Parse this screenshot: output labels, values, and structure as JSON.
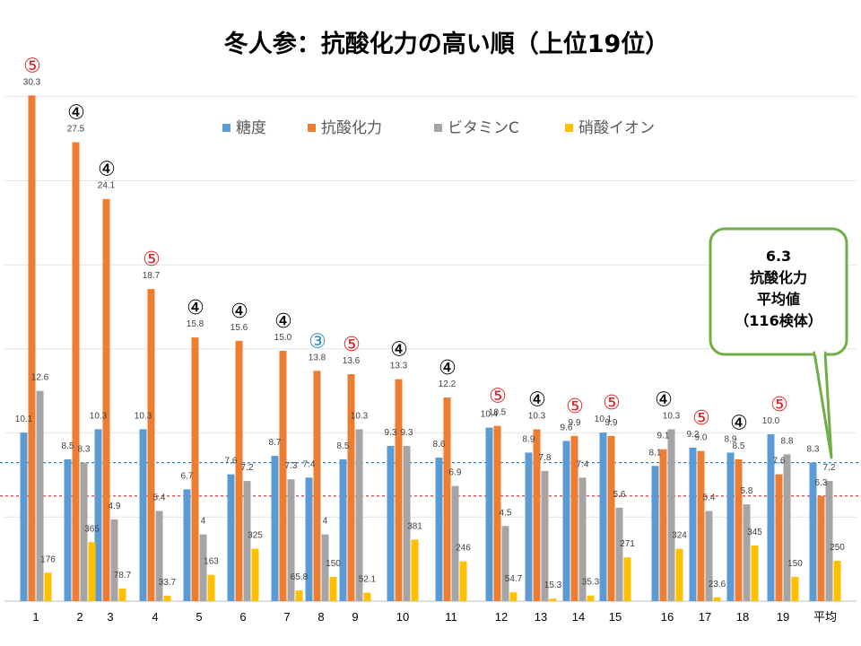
{
  "chart_data": {
    "type": "bar",
    "title": "冬人参：抗酸化力の高い順（上位19位）",
    "categories": [
      "1",
      "2",
      "3",
      "4",
      "5",
      "6",
      "7",
      "8",
      "9",
      "10",
      "11",
      "12",
      "13",
      "14",
      "15",
      "16",
      "17",
      "18",
      "19",
      "平均"
    ],
    "series": [
      {
        "name": "糖度",
        "color": "#5B9BD5",
        "values": [
          10.1,
          8.5,
          10.3,
          10.3,
          6.7,
          7.6,
          8.7,
          7.4,
          8.5,
          9.3,
          8.6,
          10.4,
          8.9,
          9.6,
          10.1,
          8.1,
          9.2,
          8.9,
          10.0,
          8.3
        ],
        "labels": [
          "10.1",
          "8.5",
          "10.3",
          "10.3",
          "6.7",
          "7.6",
          "8.7",
          "7.4",
          "8.5",
          "9.3",
          "8.6",
          "10.4",
          "8.9",
          "9.6",
          "10.1",
          "8.1",
          "9.2",
          "8.9",
          "10.0",
          "8.3"
        ]
      },
      {
        "name": "抗酸化力",
        "color": "#ED7D31",
        "values": [
          30.3,
          27.5,
          24.1,
          18.7,
          15.8,
          15.6,
          15.0,
          13.8,
          13.6,
          13.3,
          12.2,
          10.5,
          10.3,
          9.9,
          9.9,
          9.1,
          9.0,
          8.5,
          7.6,
          6.3
        ],
        "labels": [
          "30.3",
          "27.5",
          "24.1",
          "18.7",
          "15.8",
          "15.6",
          "15.0",
          "13.8",
          "13.6",
          "13.3",
          "12.2",
          "10.5",
          "10.3",
          "9.9",
          "9.9",
          "9.1",
          "9.0",
          "8.5",
          "7.6",
          "6.3"
        ]
      },
      {
        "name": "ビタミンC",
        "color": "#A5A5A5",
        "values": [
          12.6,
          8.3,
          4.9,
          5.4,
          4.0,
          7.2,
          7.3,
          4.0,
          10.3,
          9.3,
          6.9,
          4.5,
          7.8,
          7.4,
          5.6,
          10.3,
          5.4,
          5.8,
          8.8,
          7.2
        ],
        "labels": [
          "12.6",
          "8.3",
          "4.9",
          "5.4",
          "4",
          "7.2",
          "7.3",
          "4",
          "10.3",
          "9.3",
          "6.9",
          "4.5",
          "7.8",
          "7.4",
          "5.6",
          "10.3",
          "5.4",
          "5.8",
          "8.8",
          "7.2"
        ]
      },
      {
        "name": "硝酸イオン",
        "color": "#FFC000",
        "values": [
          176,
          365,
          78.7,
          33.7,
          163,
          325,
          65.8,
          150,
          52.1,
          381,
          246,
          54.7,
          15.3,
          35.3,
          271,
          324,
          23.6,
          345,
          150,
          250
        ],
        "labels": [
          "176",
          "365",
          "78.7",
          "33.7",
          "163",
          "325",
          "65.8",
          "150",
          "52.1",
          "381",
          "246",
          "54.7",
          "15.3",
          "35.3",
          "271",
          "324",
          "23.6",
          "345",
          "150",
          "250"
        ]
      }
    ],
    "ranks": [
      "⑤",
      "④",
      "④",
      "⑤",
      "④",
      "④",
      "④",
      "③",
      "⑤",
      "④",
      "④",
      "⑤",
      "④",
      "⑤",
      "⑤",
      "④",
      "⑤",
      "④",
      "⑤",
      ""
    ],
    "rank_colors": {
      "⑤": "#E02020",
      "④": "#000000",
      "③": "#2E86C1"
    },
    "reference_lines": [
      {
        "value": 8.3,
        "color": "#2E86C1",
        "style": "dashed"
      },
      {
        "value": 6.3,
        "color": "#E02020",
        "style": "dashed"
      }
    ],
    "legend_position": "top",
    "grid": true
  },
  "callout": {
    "lines": [
      "6.3",
      "抗酸化力",
      "平均値",
      "（116検体）"
    ],
    "border_color": "#70AD47"
  }
}
